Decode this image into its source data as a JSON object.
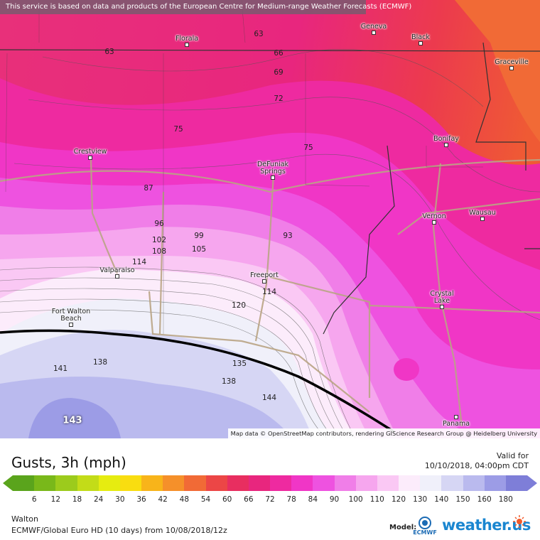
{
  "notice": "This service is based on data and products of the European Centre for Medium-range Weather Forecasts (ECMWF)",
  "attribution": "Map data © OpenStreetMap contributors, rendering GIScience Research Group @ Heidelberg University",
  "cities": [
    {
      "id": "florala",
      "name": "Florala"
    },
    {
      "id": "geneva",
      "name": "Geneva"
    },
    {
      "id": "black",
      "name": "Black"
    },
    {
      "id": "graceville",
      "name": "Graceville"
    },
    {
      "id": "bonifay",
      "name": "Bonifay"
    },
    {
      "id": "crestview",
      "name": "Crestview"
    },
    {
      "id": "defuniak",
      "name": "DeFuniak\nSprings"
    },
    {
      "id": "vernon",
      "name": "Vernon"
    },
    {
      "id": "wausau",
      "name": "Wausau"
    },
    {
      "id": "valparaiso",
      "name": "Valparaiso"
    },
    {
      "id": "freeport",
      "name": "Freeport"
    },
    {
      "id": "crystal-lake",
      "name": "Crystal\nLake"
    },
    {
      "id": "fort-walton",
      "name": "Fort Walton\nBeach"
    },
    {
      "id": "panama",
      "name": "Panama"
    }
  ],
  "gust_values": [
    "63",
    "63",
    "66",
    "69",
    "72",
    "75",
    "75",
    "87",
    "96",
    "102",
    "108",
    "99",
    "105",
    "93",
    "114",
    "114",
    "120",
    "141",
    "138",
    "135",
    "138",
    "144",
    "143"
  ],
  "legend": {
    "title": "Gusts, 3h (mph)",
    "valid_label": "Valid for",
    "valid_time": "10/10/2018, 04:00pm CDT",
    "ticks": [
      "6",
      "12",
      "18",
      "24",
      "30",
      "36",
      "42",
      "48",
      "54",
      "60",
      "66",
      "72",
      "78",
      "84",
      "90",
      "100",
      "110",
      "120",
      "130",
      "140",
      "150",
      "160",
      "180"
    ],
    "colors": [
      "#5aa41c",
      "#79b81a",
      "#9ccb1c",
      "#c3dc18",
      "#e6ec10",
      "#f9dd10",
      "#f8b41a",
      "#f5902a",
      "#f16a36",
      "#ec4646",
      "#e82e60",
      "#e8267e",
      "#ee2aa0",
      "#f036c6",
      "#ee52e0",
      "#f07ee8",
      "#f6a6ee",
      "#fac8f4",
      "#fcecfb",
      "#f0f0fa",
      "#d6d6f4",
      "#babaee",
      "#9c9ce6",
      "#7e7ed8"
    ],
    "location": "Walton",
    "model_info": "ECMWF/Global Euro HD (10 days) from 10/08/2018/12z",
    "model_label": "Model:",
    "ecmwf_logo_text": "ECMWF",
    "brand": "weather.us"
  }
}
